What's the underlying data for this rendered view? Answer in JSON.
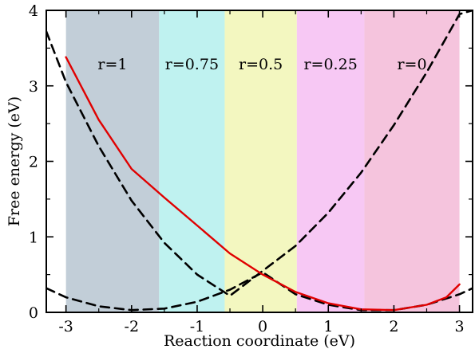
{
  "chart_data": {
    "type": "line",
    "title": "",
    "xlabel": "Reaction coordinate (eV)",
    "ylabel": "Free energy (eV)",
    "xlim": [
      -3.3,
      3.2
    ],
    "ylim": [
      0,
      4
    ],
    "xticks": [
      -3,
      -2,
      -1,
      0,
      1,
      2,
      3
    ],
    "xtick_labels": [
      "-3",
      "-2",
      "-1",
      "0",
      "1",
      "2",
      "3"
    ],
    "yticks": [
      0,
      1,
      2,
      3,
      4
    ],
    "ytick_labels": [
      "0",
      "1",
      "2",
      "3",
      "4"
    ],
    "grid": false,
    "regions": [
      {
        "label": "r=1",
        "x": [
          -3.0,
          -1.58
        ],
        "color": "#c2ced8"
      },
      {
        "label": "r=0.75",
        "x": [
          -1.58,
          -0.58
        ],
        "color": "#bff2f0"
      },
      {
        "label": "r=0.5",
        "x": [
          -0.58,
          0.52
        ],
        "color": "#f3f7c0"
      },
      {
        "label": "r=0.25",
        "x": [
          0.52,
          1.55
        ],
        "color": "#f7c8f4"
      },
      {
        "label": "r=0",
        "x": [
          1.55,
          3.0
        ],
        "color": "#f5c4dd"
      }
    ],
    "series": [
      {
        "style": "dashed",
        "color": "#000000",
        "x": [
          -3.3,
          -3.0,
          -2.5,
          -2.0,
          -1.5,
          -1.0,
          -0.5,
          0.0,
          0.5,
          1.0,
          1.5,
          2.0,
          2.5,
          3.0,
          3.2
        ],
        "y": [
          3.72,
          3.05,
          2.2,
          1.48,
          0.92,
          0.5,
          0.22,
          0.55,
          0.88,
          1.32,
          1.85,
          2.48,
          3.18,
          3.95,
          4.0
        ]
      },
      {
        "style": "dashed",
        "color": "#000000",
        "x": [
          -3.3,
          -3.0,
          -2.5,
          -2.0,
          -1.5,
          -1.0,
          -0.5,
          0.0,
          0.5,
          1.0,
          1.5,
          2.0,
          2.5,
          3.0,
          3.2
        ],
        "y": [
          0.32,
          0.2,
          0.08,
          0.03,
          0.05,
          0.14,
          0.3,
          0.53,
          0.24,
          0.1,
          0.03,
          0.03,
          0.1,
          0.24,
          0.32
        ]
      },
      {
        "style": "solid",
        "color": "#e00000",
        "x": [
          -3.0,
          -2.5,
          -2.0,
          -1.5,
          -1.0,
          -0.5,
          0.0,
          0.5,
          1.0,
          1.5,
          2.0,
          2.5,
          2.8,
          3.0
        ],
        "y": [
          3.38,
          2.55,
          1.9,
          1.52,
          1.15,
          0.78,
          0.5,
          0.27,
          0.12,
          0.04,
          0.03,
          0.1,
          0.2,
          0.37
        ]
      }
    ]
  }
}
